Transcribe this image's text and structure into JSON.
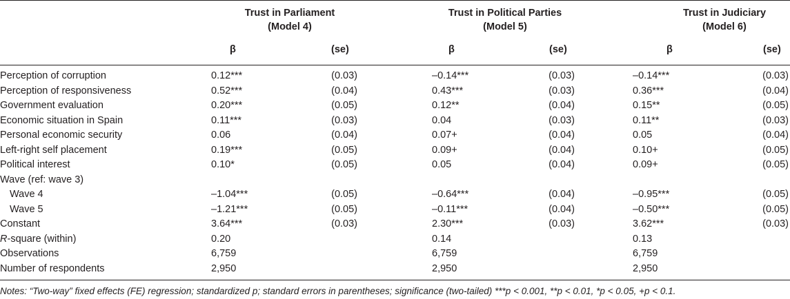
{
  "headers": {
    "model4": {
      "line1": "Trust in Parliament",
      "line2": "(Model 4)"
    },
    "model5": {
      "line1": "Trust in Political Parties",
      "line2": "(Model 5)"
    },
    "model6": {
      "line1": "Trust in Judiciary",
      "line2": "(Model 6)"
    },
    "beta": "β",
    "se": "(se)"
  },
  "rows": [
    {
      "label": "Perception of corruption",
      "b4": "0.12***",
      "s4": "(0.03)",
      "b5": "–0.14***",
      "s5": "(0.03)",
      "b6": "–0.14***",
      "s6": "(0.03)"
    },
    {
      "label": "Perception of responsiveness",
      "b4": "0.52***",
      "s4": "(0.04)",
      "b5": "0.43***",
      "s5": "(0.03)",
      "b6": "0.36***",
      "s6": "(0.04)"
    },
    {
      "label": "Government evaluation",
      "b4": "0.20***",
      "s4": "(0.05)",
      "b5": "0.12**",
      "s5": "(0.04)",
      "b6": "0.15**",
      "s6": "(0.05)"
    },
    {
      "label": "Economic situation in Spain",
      "b4": "0.11***",
      "s4": "(0.03)",
      "b5": "0.04",
      "s5": "(0.03)",
      "b6": "0.11**",
      "s6": "(0.03)"
    },
    {
      "label": "Personal economic security",
      "b4": "0.06",
      "s4": "(0.04)",
      "b5": "0.07+",
      "s5": "(0.04)",
      "b6": "0.05",
      "s6": "(0.04)"
    },
    {
      "label": "Left-right self placement",
      "b4": "0.19***",
      "s4": "(0.05)",
      "b5": "0.09+",
      "s5": "(0.04)",
      "b6": "0.10+",
      "s6": "(0.05)"
    },
    {
      "label": "Political interest",
      "b4": "0.10*",
      "s4": "(0.05)",
      "b5": "0.05",
      "s5": "(0.04)",
      "b6": "0.09+",
      "s6": "(0.05)"
    },
    {
      "label": "Wave (ref: wave 3)",
      "b4": "",
      "s4": "",
      "b5": "",
      "s5": "",
      "b6": "",
      "s6": ""
    },
    {
      "label": "Wave 4",
      "b4": "–1.04***",
      "s4": "(0.05)",
      "b5": "–0.64***",
      "s5": "(0.04)",
      "b6": "–0.95***",
      "s6": "(0.05)"
    },
    {
      "label": "Wave 5",
      "b4": "–1.21***",
      "s4": "(0.05)",
      "b5": "–0.11***",
      "s5": "(0.04)",
      "b6": "–0.50***",
      "s6": "(0.05)"
    },
    {
      "label": "Constant",
      "b4": "3.64***",
      "s4": "(0.03)",
      "b5": "2.30***",
      "s5": "(0.03)",
      "b6": "3.62***",
      "s6": "(0.03)"
    },
    {
      "label": "R-square (within)",
      "b4": "0.20",
      "s4": "",
      "b5": "0.14",
      "s5": "",
      "b6": "0.13",
      "s6": ""
    },
    {
      "label": "Observations",
      "b4": "6,759",
      "s4": "",
      "b5": "6,759",
      "s5": "",
      "b6": "6,759",
      "s6": ""
    },
    {
      "label": "Number of respondents",
      "b4": "2,950",
      "s4": "",
      "b5": "2,950",
      "s5": "",
      "b6": "2,950",
      "s6": ""
    }
  ],
  "notes": "Notes: “Two-way” fixed effects (FE) regression; standardized p; standard errors in parentheses; significance (two-tailed) ***p < 0.001, **p < 0.01, *p < 0.05, +p < 0.1."
}
